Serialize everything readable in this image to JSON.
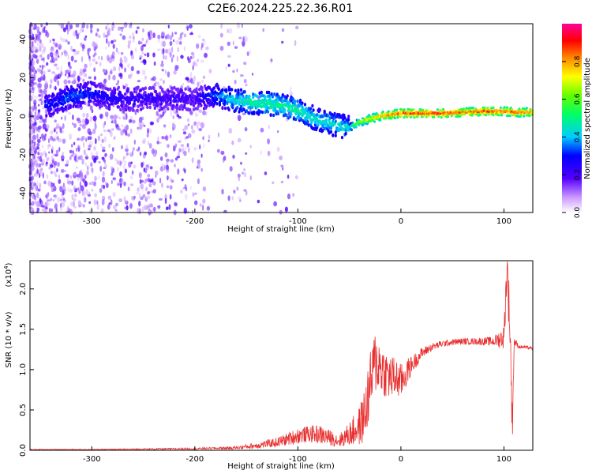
{
  "title": "C2E6.2024.225.22.36.R01",
  "colorbar": {
    "label": "Normalized spectral amplitude",
    "ticks": [
      "0.0",
      "0.2",
      "0.4",
      "0.6",
      "0.8"
    ],
    "tick_values": [
      0.0,
      0.2,
      0.4,
      0.6,
      0.8
    ],
    "range": [
      0,
      1
    ]
  },
  "chart_data": [
    {
      "type": "heatmap",
      "xlabel": "Height of straight line (km)",
      "ylabel": "Frequency (Hz)",
      "xlim": [
        -360,
        128
      ],
      "ylim": [
        -50,
        48
      ],
      "x_ticks": [
        -300,
        -200,
        -100,
        0,
        100
      ],
      "x_tick_labels": [
        "-300",
        "-200",
        "-100",
        "0",
        "100"
      ],
      "y_ticks": [
        -40,
        -20,
        0,
        20,
        40
      ],
      "y_tick_labels": [
        "-40",
        "-20",
        "0",
        "20",
        "40"
      ],
      "colormap": "rainbow",
      "ridge": {
        "x": [
          -340,
          -320,
          -300,
          -280,
          -200,
          -180,
          -160,
          -140,
          -120,
          -100,
          -80,
          -60,
          -50,
          -40,
          -20,
          0,
          20,
          40,
          60,
          80,
          100,
          110,
          128
        ],
        "frequency": [
          6,
          10,
          12,
          9,
          9,
          11,
          8,
          7,
          6,
          3,
          -2,
          -5,
          -6,
          -3,
          0,
          1.5,
          1.5,
          1.5,
          2,
          2.5,
          2.5,
          2,
          2
        ],
        "amplitude": [
          0.3,
          0.35,
          0.3,
          0.25,
          0.2,
          0.35,
          0.45,
          0.5,
          0.5,
          0.5,
          0.45,
          0.45,
          0.45,
          0.65,
          0.8,
          0.9,
          0.9,
          0.9,
          0.85,
          0.9,
          0.85,
          0.9,
          0.8
        ]
      }
    },
    {
      "type": "line",
      "xlabel": "Height of straight line (km)",
      "ylabel": "SNR (10 * v/v)",
      "y_multiplier": "(x10",
      "y_multiplier_exp": "4",
      "y_multiplier_close": ")",
      "xlim": [
        -360,
        128
      ],
      "ylim": [
        0,
        2.35
      ],
      "x_ticks": [
        -300,
        -200,
        -100,
        0,
        100
      ],
      "x_tick_labels": [
        "-300",
        "-200",
        "-100",
        "0",
        "100"
      ],
      "y_ticks": [
        0.0,
        0.5,
        1.0,
        1.5,
        2.0
      ],
      "y_tick_labels": [
        "0.0",
        "0.5",
        "1.0",
        "1.5",
        "2.0"
      ],
      "series": [
        {
          "color": "#e83030",
          "x": [
            -360,
            -300,
            -200,
            -160,
            -140,
            -120,
            -110,
            -100,
            -90,
            -80,
            -70,
            -60,
            -50,
            -40,
            -35,
            -30,
            -25,
            -20,
            -15,
            -10,
            -5,
            0,
            5,
            10,
            20,
            30,
            40,
            50,
            60,
            70,
            80,
            90,
            100,
            103,
            106,
            108,
            110,
            115,
            120,
            128
          ],
          "y": [
            0.01,
            0.01,
            0.02,
            0.03,
            0.06,
            0.1,
            0.14,
            0.18,
            0.2,
            0.2,
            0.16,
            0.12,
            0.2,
            0.3,
            0.45,
            0.8,
            1.1,
            1.05,
            0.95,
            0.9,
            0.9,
            0.85,
            0.95,
            1.05,
            1.2,
            1.28,
            1.32,
            1.34,
            1.35,
            1.35,
            1.35,
            1.35,
            1.4,
            2.3,
            1.5,
            0.3,
            1.35,
            1.28,
            1.28,
            1.26
          ],
          "noise_amplitude": [
            0.005,
            0.005,
            0.01,
            0.02,
            0.04,
            0.06,
            0.08,
            0.1,
            0.1,
            0.12,
            0.1,
            0.08,
            0.15,
            0.25,
            0.35,
            0.4,
            0.4,
            0.35,
            0.3,
            0.3,
            0.25,
            0.22,
            0.18,
            0.12,
            0.07,
            0.05,
            0.04,
            0.04,
            0.04,
            0.04,
            0.05,
            0.06,
            0.15,
            0.3,
            0.35,
            0.3,
            0.06,
            0.02,
            0.02,
            0.02
          ]
        }
      ]
    }
  ]
}
